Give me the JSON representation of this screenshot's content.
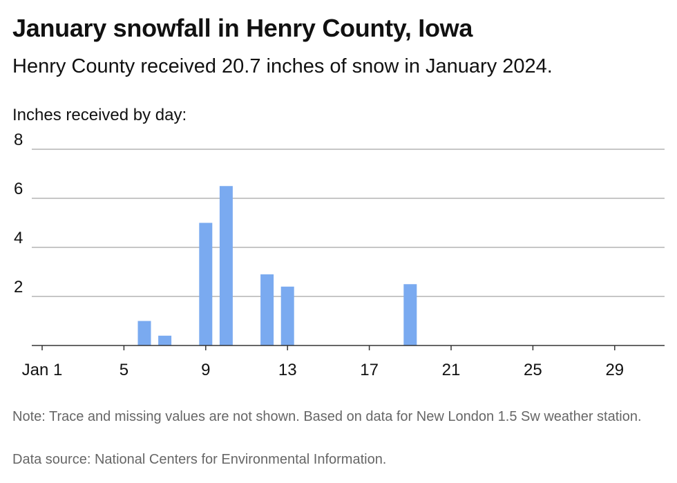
{
  "header": {
    "title": "January snowfall in Henry County, Iowa",
    "subtitle": "Henry County received 20.7 inches of snow in January 2024."
  },
  "footer": {
    "note": "Note: Trace and missing values are not shown. Based on data for New London 1.5 Sw weather station.",
    "source": "Data source: National Centers for Environmental Information."
  },
  "chart_data": {
    "type": "bar",
    "title": "Inches received by day:",
    "xlabel": "",
    "ylabel": "",
    "x_tick_labels": [
      "Jan 1",
      "5",
      "9",
      "13",
      "17",
      "21",
      "25",
      "29"
    ],
    "x_tick_days": [
      1,
      5,
      9,
      13,
      17,
      21,
      25,
      29
    ],
    "x_range_days": [
      1,
      31
    ],
    "y_ticks": [
      2,
      4,
      6,
      8
    ],
    "ylim": [
      0,
      8
    ],
    "grid": true,
    "bar_color": "#7aaaf0",
    "days": [
      6,
      7,
      9,
      10,
      12,
      13,
      19
    ],
    "values": [
      1.0,
      0.4,
      5.0,
      6.5,
      2.9,
      2.4,
      2.5
    ]
  }
}
